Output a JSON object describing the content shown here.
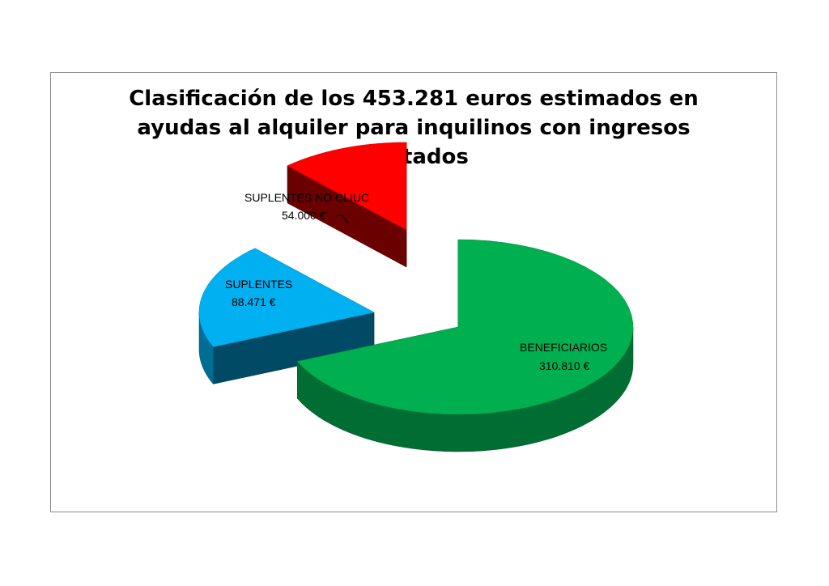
{
  "chart_data": {
    "type": "pie",
    "title_lines": [
      "Clasificación de los 453.281 euros estimados en",
      "ayudas al alquiler para inquilinos con ingresos",
      "limitados"
    ],
    "slices": [
      {
        "name": "BENEFICIARIOS",
        "value": 310810,
        "value_label": "310.810 €",
        "color": "#00b050"
      },
      {
        "name": "SUPLENTES",
        "value": 88471,
        "value_label": "88.471 €",
        "color": "#00b0f0"
      },
      {
        "name": "SUPLENTES NO CLIUC",
        "value": 54000,
        "value_label": "54.000 €",
        "color": "#ff0000"
      }
    ],
    "total": 453281,
    "style": "3d-exploded",
    "legend": "none"
  }
}
